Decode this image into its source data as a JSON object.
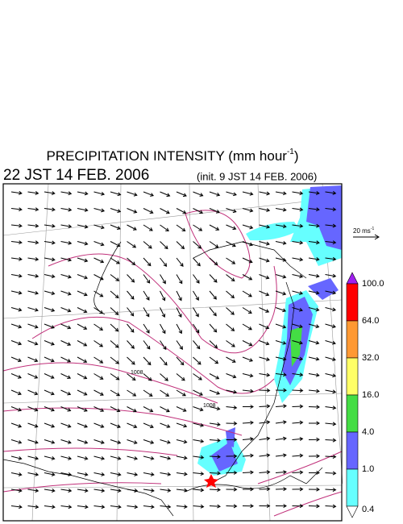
{
  "header": {
    "title": "PRECIPITATION INTENSITY (mm hour",
    "title_exp": "-1",
    "title_close": ")",
    "valid_time": "22 JST 14 FEB. 2006",
    "init_time": "(init. 9 JST 14 FEB. 2006)"
  },
  "wind_scale": {
    "label": "20 ms",
    "exp": "-1"
  },
  "isobar_labels": [
    "1008",
    "1008"
  ],
  "colorbar": {
    "labels": [
      "100.0",
      "64.0",
      "32.0",
      "16.0",
      "4.0",
      "1.0",
      "0.4"
    ],
    "colors": [
      "#a020f0",
      "#ff0000",
      "#ff9933",
      "#ffff66",
      "#44dd44",
      "#6666ff",
      "#66ffff",
      "#ffffff"
    ]
  }
}
